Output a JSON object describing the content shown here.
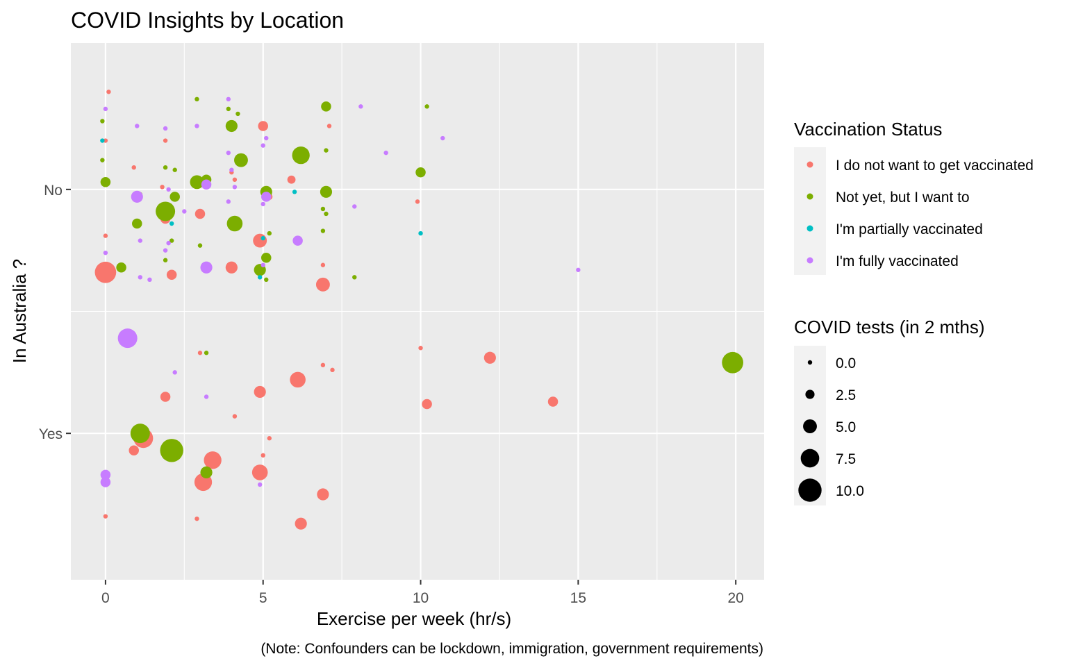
{
  "chart_data": {
    "type": "scatter",
    "title": "COVID Insights by Location",
    "xlabel": "Exercise per week (hr/s)",
    "ylabel": "In Australia ?",
    "caption": "(Note: Confounders can be lockdown, immigration, government requirements)",
    "xlim": [
      -1.1,
      20.9
    ],
    "x_ticks": [
      0,
      5,
      10,
      15,
      20
    ],
    "x_tick_labels": [
      "0",
      "5",
      "10",
      "15",
      "20"
    ],
    "y_categories": [
      "No",
      "Yes"
    ],
    "y_axis_note": "y values are category position with jitter: 1 = No, 2 = Yes (jitter spans about +/- 0.4)",
    "ylim": [
      0.4,
      2.6
    ],
    "grid": true,
    "legend_position": "right",
    "color_legend": {
      "title": "Vaccination Status",
      "entries": [
        {
          "label": "I do not want to get vaccinated",
          "color": "#F8766D"
        },
        {
          "label": "Not yet, but I want to",
          "color": "#7CAE00"
        },
        {
          "label": "I'm partially vaccinated",
          "color": "#00BFC4"
        },
        {
          "label": "I'm fully vaccinated",
          "color": "#C77CFF"
        }
      ]
    },
    "size_legend": {
      "title": "COVID tests (in 2 mths)",
      "entries": [
        {
          "label": "0.0",
          "value": 0
        },
        {
          "label": "2.5",
          "value": 2.5
        },
        {
          "label": "5.0",
          "value": 5
        },
        {
          "label": "7.5",
          "value": 7.5
        },
        {
          "label": "10.0",
          "value": 10
        }
      ]
    },
    "series": [
      {
        "name": "I do not want to get vaccinated",
        "color": "#F8766D",
        "points": [
          {
            "x": 0.1,
            "y": 0.6,
            "size": 0
          },
          {
            "x": 5.0,
            "y": 0.74,
            "size": 3
          },
          {
            "x": 7.1,
            "y": 0.74,
            "size": 0
          },
          {
            "x": 4.2,
            "y": 0.87,
            "size": 0
          },
          {
            "x": 0.0,
            "y": 0.8,
            "size": 0
          },
          {
            "x": 1.9,
            "y": 0.8,
            "size": 0
          },
          {
            "x": 0.9,
            "y": 0.91,
            "size": 0
          },
          {
            "x": 4.0,
            "y": 0.93,
            "size": 0
          },
          {
            "x": 4.1,
            "y": 0.96,
            "size": 0
          },
          {
            "x": 1.8,
            "y": 0.99,
            "size": 0
          },
          {
            "x": 5.9,
            "y": 0.96,
            "size": 2
          },
          {
            "x": 5.2,
            "y": 1.03,
            "size": 1
          },
          {
            "x": 9.9,
            "y": 1.05,
            "size": 0
          },
          {
            "x": 3.0,
            "y": 1.1,
            "size": 3
          },
          {
            "x": 1.9,
            "y": 1.12,
            "size": 3
          },
          {
            "x": 0.0,
            "y": 1.19,
            "size": 0
          },
          {
            "x": 4.9,
            "y": 1.21,
            "size": 5
          },
          {
            "x": 0.0,
            "y": 1.34,
            "size": 9
          },
          {
            "x": 2.1,
            "y": 1.35,
            "size": 3
          },
          {
            "x": 4.0,
            "y": 1.32,
            "size": 4
          },
          {
            "x": 6.9,
            "y": 1.31,
            "size": 0
          },
          {
            "x": 6.9,
            "y": 1.39,
            "size": 5
          },
          {
            "x": 10.0,
            "y": 1.65,
            "size": 0
          },
          {
            "x": 3.0,
            "y": 1.67,
            "size": 0
          },
          {
            "x": 12.2,
            "y": 1.69,
            "size": 4
          },
          {
            "x": 6.9,
            "y": 1.72,
            "size": 0
          },
          {
            "x": 7.2,
            "y": 1.74,
            "size": 0
          },
          {
            "x": 6.1,
            "y": 1.78,
            "size": 6
          },
          {
            "x": 4.9,
            "y": 1.83,
            "size": 4
          },
          {
            "x": 1.9,
            "y": 1.85,
            "size": 3
          },
          {
            "x": 10.2,
            "y": 1.88,
            "size": 3
          },
          {
            "x": 14.2,
            "y": 1.87,
            "size": 3
          },
          {
            "x": 4.1,
            "y": 1.93,
            "size": 0
          },
          {
            "x": 1.2,
            "y": 2.02,
            "size": 8
          },
          {
            "x": 5.2,
            "y": 2.02,
            "size": 0
          },
          {
            "x": 0.9,
            "y": 2.07,
            "size": 3
          },
          {
            "x": 5.0,
            "y": 2.09,
            "size": 0
          },
          {
            "x": 3.4,
            "y": 2.11,
            "size": 7
          },
          {
            "x": 4.9,
            "y": 2.16,
            "size": 6
          },
          {
            "x": 3.1,
            "y": 2.2,
            "size": 7
          },
          {
            "x": 6.9,
            "y": 2.25,
            "size": 4
          },
          {
            "x": 0.0,
            "y": 2.34,
            "size": 0
          },
          {
            "x": 2.9,
            "y": 2.35,
            "size": 0
          },
          {
            "x": 6.2,
            "y": 2.37,
            "size": 4
          }
        ]
      },
      {
        "name": "Not yet, but I want to",
        "color": "#7CAE00",
        "points": [
          {
            "x": -0.1,
            "y": 0.72,
            "size": 0
          },
          {
            "x": 2.9,
            "y": 0.63,
            "size": 0
          },
          {
            "x": 3.9,
            "y": 0.67,
            "size": 0
          },
          {
            "x": 4.2,
            "y": 0.69,
            "size": 0
          },
          {
            "x": 7.0,
            "y": 0.66,
            "size": 3
          },
          {
            "x": 10.2,
            "y": 0.66,
            "size": 0
          },
          {
            "x": 4.0,
            "y": 0.74,
            "size": 4
          },
          {
            "x": 7.0,
            "y": 0.84,
            "size": 0
          },
          {
            "x": 6.2,
            "y": 0.86,
            "size": 7
          },
          {
            "x": 4.3,
            "y": 0.88,
            "size": 5
          },
          {
            "x": -0.1,
            "y": 0.88,
            "size": 0
          },
          {
            "x": 1.9,
            "y": 0.91,
            "size": 0
          },
          {
            "x": 2.2,
            "y": 0.92,
            "size": 0
          },
          {
            "x": 10.0,
            "y": 0.93,
            "size": 3
          },
          {
            "x": 0.0,
            "y": 0.97,
            "size": 3
          },
          {
            "x": 2.9,
            "y": 0.97,
            "size": 5
          },
          {
            "x": 3.2,
            "y": 0.96,
            "size": 3
          },
          {
            "x": 5.1,
            "y": 1.01,
            "size": 4
          },
          {
            "x": 7.0,
            "y": 1.01,
            "size": 4
          },
          {
            "x": 1.1,
            "y": 1.02,
            "size": 0
          },
          {
            "x": 2.2,
            "y": 1.03,
            "size": 3
          },
          {
            "x": 1.9,
            "y": 1.09,
            "size": 8
          },
          {
            "x": 6.9,
            "y": 1.08,
            "size": 0
          },
          {
            "x": 7.0,
            "y": 1.1,
            "size": 0
          },
          {
            "x": 1.0,
            "y": 1.14,
            "size": 3
          },
          {
            "x": 4.1,
            "y": 1.14,
            "size": 6
          },
          {
            "x": 5.2,
            "y": 1.18,
            "size": 0
          },
          {
            "x": 6.9,
            "y": 1.17,
            "size": 0
          },
          {
            "x": 2.1,
            "y": 1.21,
            "size": 0
          },
          {
            "x": 3.0,
            "y": 1.23,
            "size": 0
          },
          {
            "x": 5.1,
            "y": 1.28,
            "size": 3
          },
          {
            "x": 1.9,
            "y": 1.29,
            "size": 0
          },
          {
            "x": 0.5,
            "y": 1.32,
            "size": 3
          },
          {
            "x": 4.9,
            "y": 1.33,
            "size": 4
          },
          {
            "x": 5.1,
            "y": 1.37,
            "size": 0
          },
          {
            "x": 7.9,
            "y": 1.36,
            "size": 0
          },
          {
            "x": 3.2,
            "y": 1.67,
            "size": 0
          },
          {
            "x": 19.9,
            "y": 1.71,
            "size": 9
          },
          {
            "x": 1.1,
            "y": 2.0,
            "size": 8
          },
          {
            "x": 2.1,
            "y": 2.07,
            "size": 10
          },
          {
            "x": 3.2,
            "y": 2.16,
            "size": 4
          }
        ]
      },
      {
        "name": "I'm partially vaccinated",
        "color": "#00BFC4",
        "points": [
          {
            "x": -0.1,
            "y": 0.8,
            "size": 0
          },
          {
            "x": 6.0,
            "y": 1.01,
            "size": 0
          },
          {
            "x": 2.1,
            "y": 1.14,
            "size": 0
          },
          {
            "x": 10.0,
            "y": 1.18,
            "size": 0
          },
          {
            "x": 5.0,
            "y": 1.2,
            "size": 0
          },
          {
            "x": 4.9,
            "y": 1.36,
            "size": 0
          }
        ]
      },
      {
        "name": "I'm fully vaccinated",
        "color": "#C77CFF",
        "points": [
          {
            "x": 3.9,
            "y": 0.63,
            "size": 0
          },
          {
            "x": 0.0,
            "y": 0.67,
            "size": 0
          },
          {
            "x": 8.1,
            "y": 0.66,
            "size": 0
          },
          {
            "x": 1.0,
            "y": 0.74,
            "size": 0
          },
          {
            "x": 1.9,
            "y": 0.75,
            "size": 0
          },
          {
            "x": 2.9,
            "y": 0.74,
            "size": 0
          },
          {
            "x": 5.1,
            "y": 0.79,
            "size": 0
          },
          {
            "x": 10.7,
            "y": 0.79,
            "size": 0
          },
          {
            "x": 3.9,
            "y": 0.85,
            "size": 0
          },
          {
            "x": 4.0,
            "y": 0.92,
            "size": 0
          },
          {
            "x": 5.0,
            "y": 0.82,
            "size": 0
          },
          {
            "x": 8.9,
            "y": 0.85,
            "size": 0
          },
          {
            "x": 2.0,
            "y": 1.0,
            "size": 0
          },
          {
            "x": 4.1,
            "y": 0.99,
            "size": 0
          },
          {
            "x": 3.2,
            "y": 0.98,
            "size": 3
          },
          {
            "x": 1.0,
            "y": 1.03,
            "size": 4
          },
          {
            "x": 3.9,
            "y": 1.05,
            "size": 0
          },
          {
            "x": 5.1,
            "y": 1.03,
            "size": 3
          },
          {
            "x": 5.0,
            "y": 1.06,
            "size": 0
          },
          {
            "x": 2.5,
            "y": 1.09,
            "size": 0
          },
          {
            "x": 7.9,
            "y": 1.07,
            "size": 0
          },
          {
            "x": 1.1,
            "y": 1.21,
            "size": 0
          },
          {
            "x": 2.0,
            "y": 1.22,
            "size": 0
          },
          {
            "x": 6.1,
            "y": 1.21,
            "size": 3
          },
          {
            "x": 0.0,
            "y": 1.26,
            "size": 0
          },
          {
            "x": 1.9,
            "y": 1.25,
            "size": 0
          },
          {
            "x": 3.2,
            "y": 1.32,
            "size": 4
          },
          {
            "x": 5.0,
            "y": 1.31,
            "size": 0
          },
          {
            "x": 1.1,
            "y": 1.36,
            "size": 0
          },
          {
            "x": 1.4,
            "y": 1.37,
            "size": 0
          },
          {
            "x": 15.0,
            "y": 1.33,
            "size": 0
          },
          {
            "x": 0.7,
            "y": 1.61,
            "size": 8
          },
          {
            "x": 2.2,
            "y": 1.75,
            "size": 0
          },
          {
            "x": 3.2,
            "y": 1.85,
            "size": 0
          },
          {
            "x": 0.0,
            "y": 2.17,
            "size": 3
          },
          {
            "x": 0.0,
            "y": 2.2,
            "size": 3
          },
          {
            "x": 4.9,
            "y": 2.21,
            "size": 0
          }
        ]
      }
    ]
  }
}
